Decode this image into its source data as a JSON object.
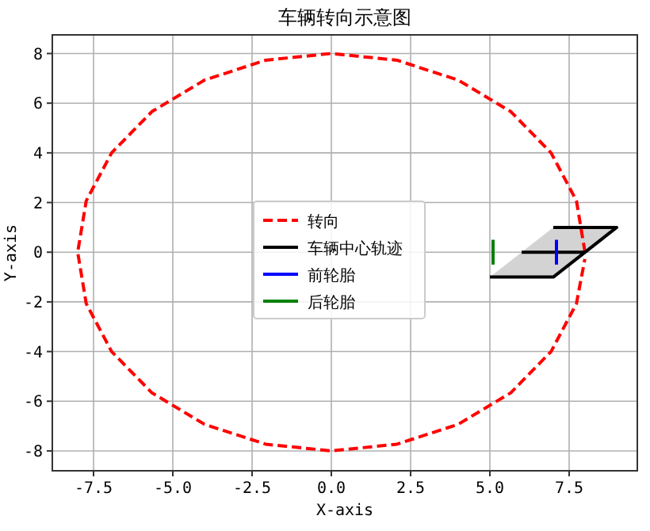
{
  "chart_data": {
    "type": "line",
    "title": "车辆转向示意图",
    "xlabel": "X-axis",
    "ylabel": "Y-axis",
    "xlim": [
      -8.8,
      9.65
    ],
    "ylim": [
      -8.8,
      8.75
    ],
    "xticks": [
      -7.5,
      {
        "value": -5,
        "label": "-5.0"
      },
      -2.5,
      {
        "value": 0,
        "label": "0.0"
      },
      2.5,
      {
        "value": 5,
        "label": "5.0"
      },
      7.5
    ],
    "yticks": [
      -8,
      -6,
      -4,
      -2,
      0,
      2,
      4,
      6,
      8
    ],
    "grid": true,
    "legend": "center",
    "series": [
      {
        "name": "转向",
        "color": "#ff0000",
        "line_style": "dashed",
        "x": [
          8,
          7.73,
          6.93,
          5.66,
          4,
          2.07,
          0,
          -2.07,
          -4,
          -5.66,
          -6.93,
          -7.73,
          -8,
          -7.73,
          -6.93,
          -5.66,
          -4,
          -2.07,
          0,
          2.07,
          4,
          5.66,
          6.93,
          7.73,
          7.995
        ],
        "values": [
          0,
          2.07,
          4,
          5.66,
          6.93,
          7.73,
          8,
          7.73,
          6.93,
          5.66,
          4,
          2.07,
          0,
          -2.07,
          -4,
          -5.66,
          -6.93,
          -7.73,
          -8,
          -7.73,
          -6.93,
          -5.66,
          -4,
          -2.07,
          -0.28
        ]
      },
      {
        "name": "车辆中心轨迹",
        "color": "#000000",
        "line_style": "solid",
        "x": [
          6,
          8
        ],
        "values": [
          0,
          0
        ]
      },
      {
        "name": "前轮胎",
        "color": "#0000ff",
        "line_style": "solid",
        "x": [
          7.1,
          7.1
        ],
        "values": [
          -0.5,
          0.5
        ]
      },
      {
        "name": "后轮胎",
        "color": "#008000",
        "line_style": "solid",
        "x": [
          5.1,
          5.1
        ],
        "values": [
          -0.5,
          0.5
        ]
      },
      {
        "color": "#000000",
        "line_style": "solid",
        "x": [
          5,
          7,
          9,
          7
        ],
        "values": [
          -1,
          -1,
          1,
          1
        ]
      }
    ]
  }
}
